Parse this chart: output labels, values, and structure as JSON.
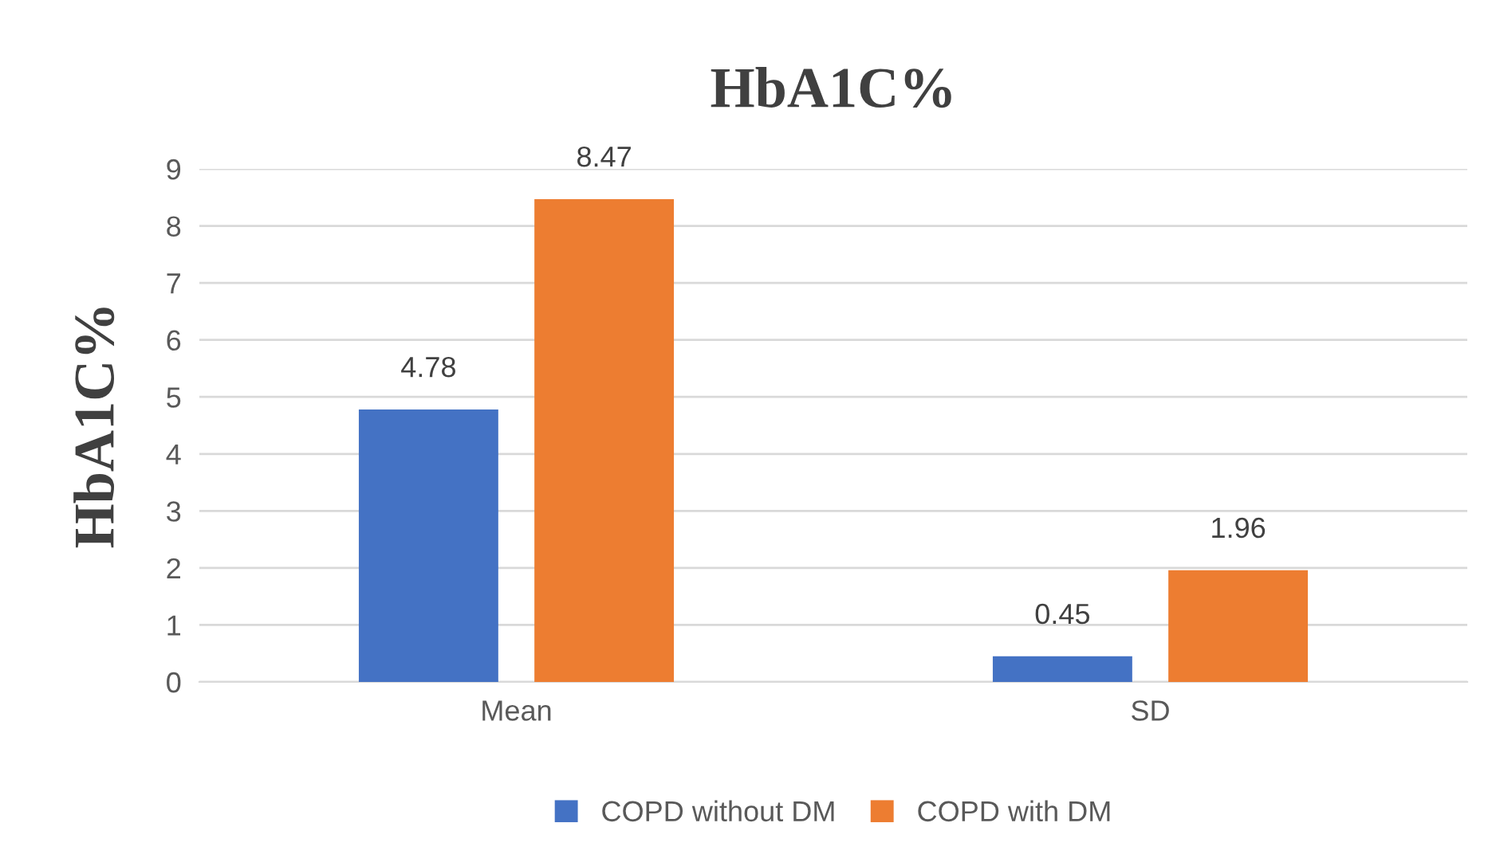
{
  "chart_data": {
    "type": "bar",
    "title": "HbA1C%",
    "ylabel": "HbA1C%",
    "categories": [
      "Mean",
      "SD"
    ],
    "series": [
      {
        "name": "COPD without DM",
        "color": "#4472c4",
        "values": [
          4.78,
          0.45
        ]
      },
      {
        "name": "COPD with DM",
        "color": "#ed7d31",
        "values": [
          8.47,
          1.96
        ]
      }
    ],
    "ylim": [
      0,
      9
    ],
    "yticks": [
      0,
      1,
      2,
      3,
      4,
      5,
      6,
      7,
      8,
      9
    ],
    "grid": "y",
    "legend": "bottom",
    "data_labels": true
  }
}
